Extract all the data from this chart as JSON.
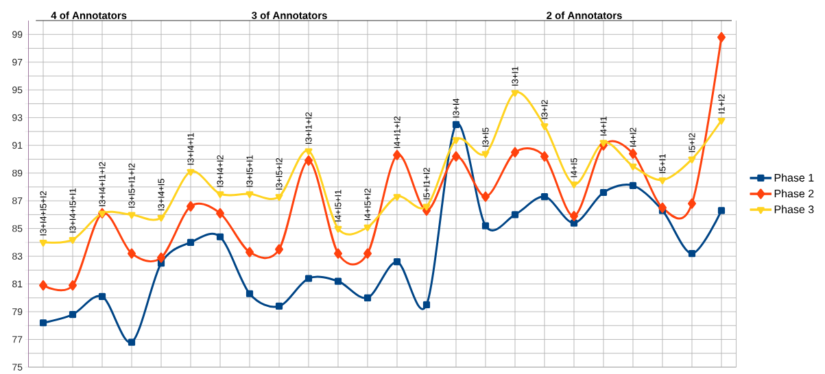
{
  "chart_data": {
    "type": "line",
    "categories": [
      "I3+I4+I5+I2",
      "I3+I4+I5+I1",
      "I3+I4+I1+I2",
      "I3+I5+I1+I2",
      "I3+I4+I5",
      "I3+I4+I1",
      "I3+I4+I2",
      "I3+I5+I1",
      "I3+I5+I2",
      "I3+I1+I2",
      "I4+I5+I1",
      "I4+I5+I2",
      "I4+I1+I2",
      "I5+I1+I2",
      "I3+I4",
      "I3+I5",
      "I3+I1",
      "I3+I2",
      "I4+I5",
      "I4+I1",
      "I4+I2",
      "I5+I1",
      "I5+I2",
      "I1+I2"
    ],
    "series": [
      {
        "name": "Phase 1",
        "color": "#004586",
        "marker": "square",
        "values": [
          78.2,
          78.8,
          80.1,
          76.8,
          82.5,
          84.0,
          84.4,
          80.3,
          79.4,
          81.4,
          81.2,
          80.0,
          82.6,
          79.5,
          92.5,
          85.2,
          86.0,
          87.3,
          85.4,
          87.6,
          88.1,
          86.3,
          83.2,
          86.3
        ]
      },
      {
        "name": "Phase 2",
        "color": "#ff420e",
        "marker": "diamond",
        "values": [
          80.9,
          80.9,
          86.1,
          83.2,
          82.9,
          86.6,
          86.1,
          83.3,
          83.5,
          89.9,
          83.2,
          83.2,
          90.3,
          86.3,
          90.2,
          87.3,
          90.5,
          90.2,
          85.9,
          91.0,
          90.4,
          86.5,
          86.8,
          98.8
        ]
      },
      {
        "name": "Phase 3",
        "color": "#ffd320",
        "marker": "triangle",
        "values": [
          84.0,
          84.2,
          86.1,
          86.0,
          85.8,
          89.1,
          87.5,
          87.5,
          87.3,
          90.6,
          85.0,
          85.1,
          87.3,
          86.6,
          91.4,
          90.4,
          94.8,
          92.4,
          88.2,
          91.2,
          89.5,
          88.5,
          90.0,
          92.8
        ]
      }
    ],
    "ylim": [
      75,
      100
    ],
    "yticks": [
      75,
      {
        "value": 76,
        "label": null
      },
      77,
      {
        "value": 78,
        "label": null
      },
      79,
      {
        "value": 80,
        "label": null
      },
      81,
      {
        "value": 82,
        "label": null
      },
      83,
      {
        "value": 84,
        "label": null
      },
      85,
      {
        "value": 86,
        "label": null
      },
      87,
      {
        "value": 88,
        "label": null
      },
      89,
      {
        "value": 90,
        "label": null
      },
      91,
      {
        "value": 92,
        "label": null
      },
      93,
      {
        "value": 94,
        "label": null
      },
      95,
      {
        "value": 96,
        "label": null
      },
      97,
      {
        "value": 98,
        "label": null
      },
      99
    ],
    "annotations": [
      "4 of Annotators",
      "3 of Annotators",
      "2 of Annotators"
    ],
    "grid": true,
    "legend": "right",
    "line_style": "solid"
  }
}
